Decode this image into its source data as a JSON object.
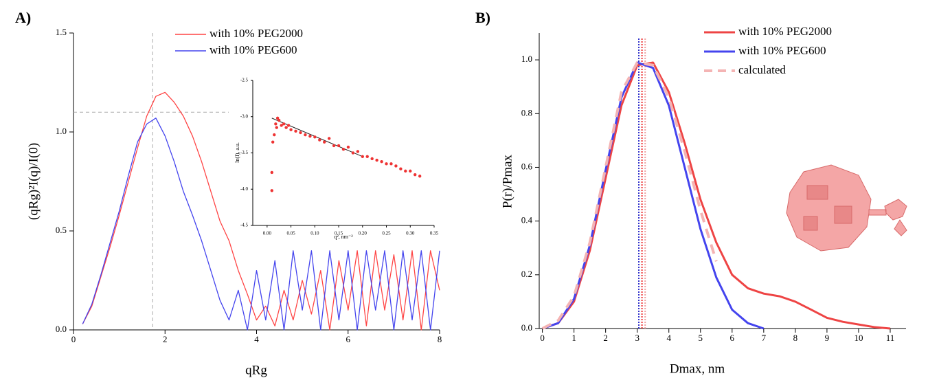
{
  "chart_data": [
    {
      "type": "line",
      "panel_label": "A)",
      "x_label": "qRg",
      "y_label": "(qRg)²I(q)/I(0)",
      "xlim": [
        0,
        8
      ],
      "ylim": [
        0,
        1.5
      ],
      "xticks": [
        0,
        2,
        4,
        6,
        8
      ],
      "yticks": [
        {
          "value": 0,
          "label": "0.0"
        },
        {
          "value": 0.5,
          "label": "0.5"
        },
        {
          "value": 1,
          "label": "1.0"
        },
        {
          "value": 1.5,
          "label": "1.5"
        }
      ],
      "reference_lines": {
        "x": 1.73,
        "y": 1.1,
        "color": "#aaaaaa"
      },
      "series": [
        {
          "name": "with 10% PEG2000",
          "color": "#ff4444",
          "x": [
            0.2,
            0.4,
            0.6,
            0.8,
            1.0,
            1.2,
            1.4,
            1.6,
            1.8,
            2.0,
            2.2,
            2.4,
            2.6,
            2.8,
            3.0,
            3.2,
            3.4,
            3.6,
            3.8,
            4.0,
            4.2,
            4.4,
            4.6,
            4.8,
            5.0,
            5.2,
            5.4,
            5.6,
            5.8,
            6.0,
            6.2,
            6.4,
            6.6,
            6.8,
            7.0,
            7.2,
            7.4,
            7.6,
            7.8,
            8.0
          ],
          "values": [
            0.03,
            0.12,
            0.27,
            0.42,
            0.58,
            0.75,
            0.92,
            1.08,
            1.18,
            1.2,
            1.15,
            1.08,
            0.98,
            0.85,
            0.7,
            0.55,
            0.45,
            0.3,
            0.18,
            0.05,
            0.12,
            0.02,
            0.2,
            0.05,
            0.25,
            0.08,
            0.3,
            0.0,
            0.35,
            0.1,
            0.4,
            0.02,
            0.4,
            0.1,
            0.38,
            0.05,
            0.4,
            0.0,
            0.4,
            0.2
          ]
        },
        {
          "name": "with 10% PEG600",
          "color": "#4444ee",
          "x": [
            0.2,
            0.4,
            0.6,
            0.8,
            1.0,
            1.2,
            1.4,
            1.6,
            1.8,
            2.0,
            2.2,
            2.4,
            2.6,
            2.8,
            3.0,
            3.2,
            3.4,
            3.6,
            3.8,
            4.0,
            4.2,
            4.4,
            4.6,
            4.8,
            5.0,
            5.2,
            5.4,
            5.6,
            5.8,
            6.0,
            6.2,
            6.4,
            6.6,
            6.8,
            7.0,
            7.2,
            7.4,
            7.6,
            7.8,
            8.0
          ],
          "values": [
            0.03,
            0.13,
            0.28,
            0.44,
            0.6,
            0.78,
            0.95,
            1.04,
            1.07,
            0.98,
            0.85,
            0.7,
            0.58,
            0.45,
            0.3,
            0.15,
            0.05,
            0.2,
            0.0,
            0.3,
            0.05,
            0.35,
            0.0,
            0.4,
            0.1,
            0.4,
            0.0,
            0.4,
            0.05,
            0.4,
            0.0,
            0.4,
            0.1,
            0.4,
            0.0,
            0.4,
            0.05,
            0.4,
            0.0,
            0.4
          ]
        }
      ]
    },
    {
      "type": "scatter",
      "x_label": "q², nm⁻²",
      "y_label": "ln(I), a.u.",
      "xlim": [
        -0.03,
        0.35
      ],
      "ylim": [
        -4.5,
        -2.5
      ],
      "xticks": [
        {
          "value": 0,
          "label": "0.00"
        },
        0.05,
        {
          "value": 0.1,
          "label": "0.10"
        },
        0.15,
        {
          "value": 0.2,
          "label": "0.20"
        },
        0.25,
        {
          "value": 0.3,
          "label": "0.30"
        },
        0.35
      ],
      "yticks": [
        -2.5,
        {
          "value": -3,
          "label": "-3.0"
        },
        -3.5,
        {
          "value": -4,
          "label": "-4.0"
        },
        -4.5
      ],
      "color": "#ee3333",
      "fit_line": {
        "x": [
          0.01,
          0.2
        ],
        "y": [
          -3.02,
          -3.55
        ],
        "color": "#222222"
      },
      "x": [
        0.01,
        0.01,
        0.012,
        0.015,
        0.018,
        0.02,
        0.022,
        0.025,
        0.03,
        0.035,
        0.04,
        0.045,
        0.05,
        0.06,
        0.07,
        0.08,
        0.09,
        0.1,
        0.11,
        0.12,
        0.13,
        0.14,
        0.15,
        0.16,
        0.17,
        0.18,
        0.19,
        0.2,
        0.21,
        0.22,
        0.23,
        0.24,
        0.25,
        0.26,
        0.27,
        0.28,
        0.29,
        0.3,
        0.31,
        0.32
      ],
      "values": [
        -4.02,
        -3.77,
        -3.35,
        -3.25,
        -3.1,
        -3.15,
        -3.02,
        -3.05,
        -3.12,
        -3.1,
        -3.15,
        -3.12,
        -3.18,
        -3.2,
        -3.22,
        -3.25,
        -3.27,
        -3.28,
        -3.32,
        -3.35,
        -3.3,
        -3.4,
        -3.4,
        -3.45,
        -3.42,
        -3.5,
        -3.48,
        -3.55,
        -3.55,
        -3.58,
        -3.6,
        -3.62,
        -3.65,
        -3.65,
        -3.68,
        -3.72,
        -3.75,
        -3.75,
        -3.8,
        -3.82
      ]
    },
    {
      "type": "line",
      "panel_label": "B)",
      "x_label": "Dmax, nm",
      "y_label": "P(r)/Pmax",
      "xlim": [
        -0.1,
        11.5
      ],
      "ylim": [
        0,
        1.1
      ],
      "xticks": [
        0,
        1,
        2,
        3,
        4,
        5,
        6,
        7,
        8,
        9,
        10,
        11
      ],
      "yticks": [
        {
          "value": 0,
          "label": "0.0"
        },
        0.2,
        0.4,
        0.6,
        0.8,
        {
          "value": 1,
          "label": "1.0"
        }
      ],
      "vertical_lines": [
        {
          "x": 3.05,
          "color": "#3333cc"
        },
        {
          "x": 3.15,
          "color": "#ee3333"
        },
        {
          "x": 3.25,
          "color": "#f0a0a0"
        }
      ],
      "series": [
        {
          "name": "with 10% PEG2000",
          "color": "#ee4444",
          "x": [
            0,
            0.5,
            1,
            1.5,
            2,
            2.5,
            3,
            3.5,
            4,
            4.5,
            5,
            5.5,
            6,
            6.5,
            7,
            7.5,
            8,
            8.5,
            9,
            9.5,
            10,
            10.5,
            11
          ],
          "values": [
            0,
            0.02,
            0.1,
            0.29,
            0.56,
            0.83,
            0.98,
            0.99,
            0.88,
            0.69,
            0.48,
            0.32,
            0.2,
            0.15,
            0.13,
            0.12,
            0.1,
            0.07,
            0.04,
            0.025,
            0.015,
            0.005,
            0
          ]
        },
        {
          "name": "with 10% PEG600",
          "color": "#4444ee",
          "x": [
            0,
            0.5,
            1,
            1.5,
            2,
            2.5,
            3,
            3.5,
            4,
            4.5,
            5,
            5.5,
            6,
            6.5,
            7
          ],
          "values": [
            0,
            0.02,
            0.11,
            0.31,
            0.59,
            0.86,
            0.99,
            0.97,
            0.83,
            0.6,
            0.37,
            0.19,
            0.07,
            0.02,
            0
          ]
        },
        {
          "name": "calculated",
          "color": "#f4b4b4",
          "dashed": true,
          "x": [
            0,
            0.5,
            1,
            1.5,
            2,
            2.5,
            3,
            3.5,
            4,
            4.5,
            5,
            5.5
          ],
          "values": [
            0,
            0.03,
            0.12,
            0.32,
            0.6,
            0.88,
            0.99,
            0.98,
            0.86,
            0.66,
            0.44,
            0.25
          ]
        }
      ]
    }
  ]
}
